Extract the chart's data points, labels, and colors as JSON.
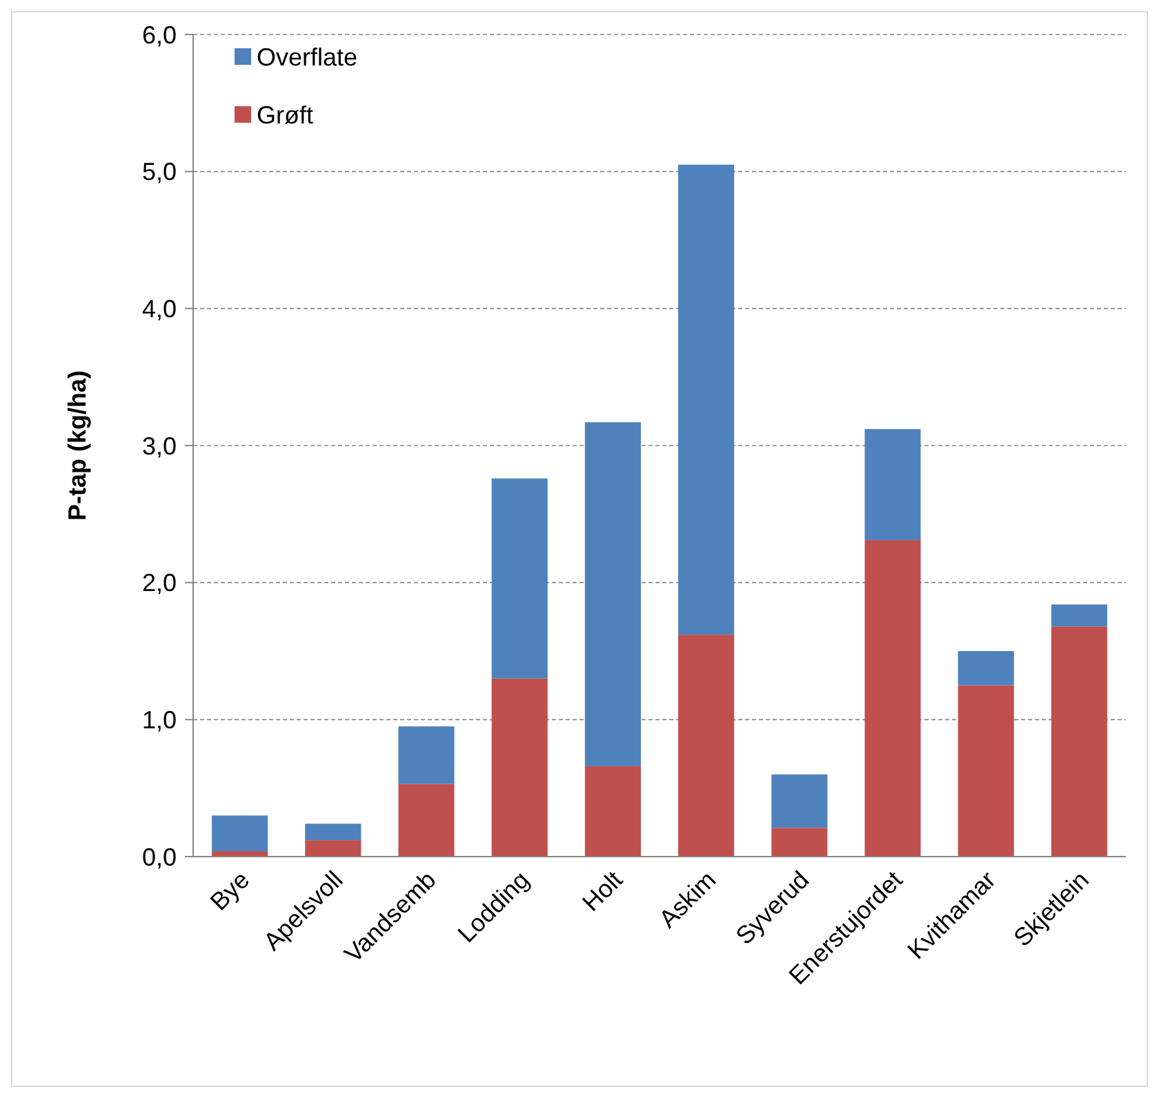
{
  "chart_data": {
    "type": "bar",
    "stacked": true,
    "ylabel": "P-tap (kg/ha)",
    "categories": [
      "Bye",
      "Apelsvoll",
      "Vandsemb",
      "Lodding",
      "Holt",
      "Askim",
      "Syverud",
      "Enerstujordet",
      "Kvithamar",
      "Skjetlein"
    ],
    "series": [
      {
        "name": "Grøft",
        "color": "#c0504d",
        "values": [
          0.04,
          0.12,
          0.53,
          1.3,
          0.66,
          1.62,
          0.21,
          2.31,
          1.25,
          1.68
        ]
      },
      {
        "name": "Overflate",
        "color": "#4f81bd",
        "values": [
          0.26,
          0.12,
          0.42,
          1.46,
          2.51,
          3.43,
          0.39,
          0.81,
          0.25,
          0.16
        ]
      }
    ],
    "ylim": [
      0,
      6
    ],
    "yticks": [
      {
        "value": 0,
        "label": "0,0"
      },
      {
        "value": 1,
        "label": "1,0"
      },
      {
        "value": 2,
        "label": "2,0"
      },
      {
        "value": 3,
        "label": "3,0"
      },
      {
        "value": 4,
        "label": "4,0"
      },
      {
        "value": 5,
        "label": "5,0"
      },
      {
        "value": 6,
        "label": "6,0"
      }
    ],
    "grid": "y",
    "legend": "top left"
  }
}
